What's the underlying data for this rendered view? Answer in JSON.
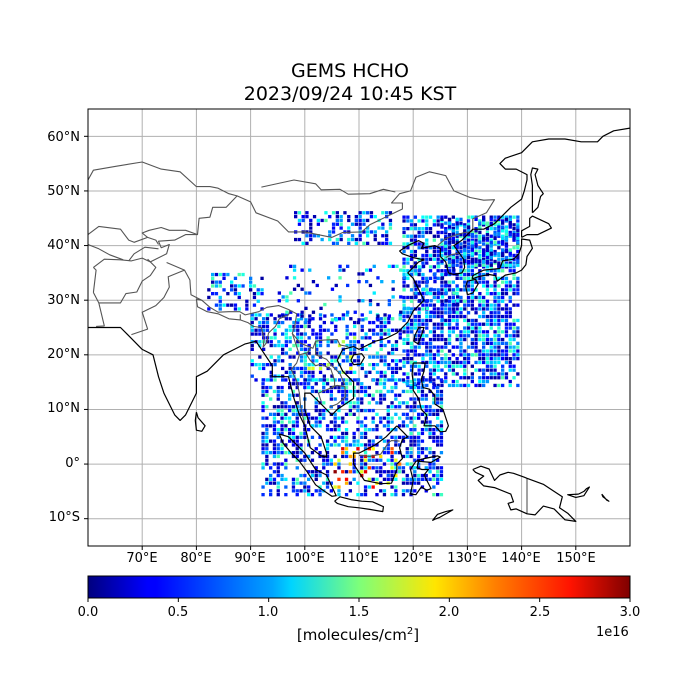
{
  "title": {
    "line1": "GEMS HCHO",
    "line2": "2023/09/24 10:45 KST"
  },
  "map": {
    "lon_range": [
      60,
      160
    ],
    "lat_range": [
      -15,
      65
    ],
    "lat_labels": [
      "60°N",
      "50°N",
      "40°N",
      "30°N",
      "20°N",
      "10°N",
      "0°",
      "10°S"
    ],
    "lon_labels": [
      "70°E",
      "80°E",
      "90°E",
      "100°E",
      "110°E",
      "120°E",
      "130°E",
      "140°E",
      "150°E"
    ],
    "gridlines": true
  },
  "colorbar": {
    "colormap": "jet",
    "range": [
      0.0,
      3.0
    ],
    "ticks": [
      "0.0",
      "0.5",
      "1.0",
      "1.5",
      "2.0",
      "2.5",
      "3.0"
    ],
    "unit_base": "[molecules/cm",
    "unit_sup": "2",
    "unit_end": "]",
    "exponent": "1e16"
  }
}
